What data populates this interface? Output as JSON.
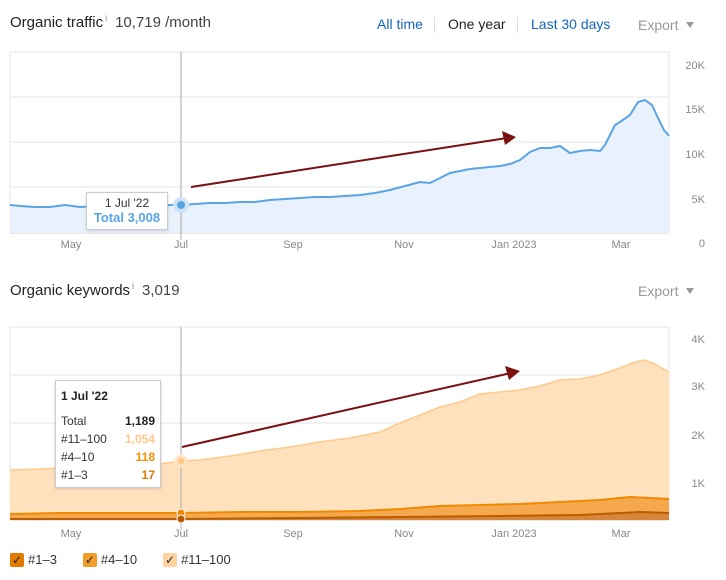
{
  "traffic": {
    "title": "Organic traffic",
    "info_icon": "i",
    "value": "10,719 /month",
    "ranges": [
      "All time",
      "One year",
      "Last 30 days"
    ],
    "export_label": "Export",
    "y_ticks": [
      "20K",
      "15K",
      "10K",
      "5K",
      "0"
    ],
    "x_ticks": [
      "May",
      "Jul",
      "Sep",
      "Nov",
      "Jan 2023",
      "Mar"
    ],
    "tooltip": {
      "date": "1 Jul '22",
      "total": "Total 3,008"
    },
    "color": "#5aa4e6"
  },
  "keywords": {
    "title": "Organic keywords",
    "info_icon": "i",
    "value": "3,019",
    "export_label": "Export",
    "y_ticks": [
      "4K",
      "3K",
      "2K",
      "1K"
    ],
    "x_ticks": [
      "May",
      "Jul",
      "Sep",
      "Nov",
      "Jan 2023",
      "Mar"
    ],
    "tooltip": {
      "date": "1 Jul '22",
      "rows": [
        {
          "label": "Total",
          "value": "1,189",
          "color": "#222222"
        },
        {
          "label": "#11–100",
          "value": "1,054",
          "color": "#ffc98a"
        },
        {
          "label": "#4–10",
          "value": "118",
          "color": "#f39200"
        },
        {
          "label": "#1–3",
          "value": "17",
          "color": "#d97900"
        }
      ]
    }
  },
  "legend": [
    {
      "label": "#1–3",
      "color": "#e07b00",
      "check": "✓"
    },
    {
      "label": "#4–10",
      "color": "#f39c2a",
      "check": "✓"
    },
    {
      "label": "#11–100",
      "color": "#ffd3a0",
      "check": "✓"
    }
  ]
}
